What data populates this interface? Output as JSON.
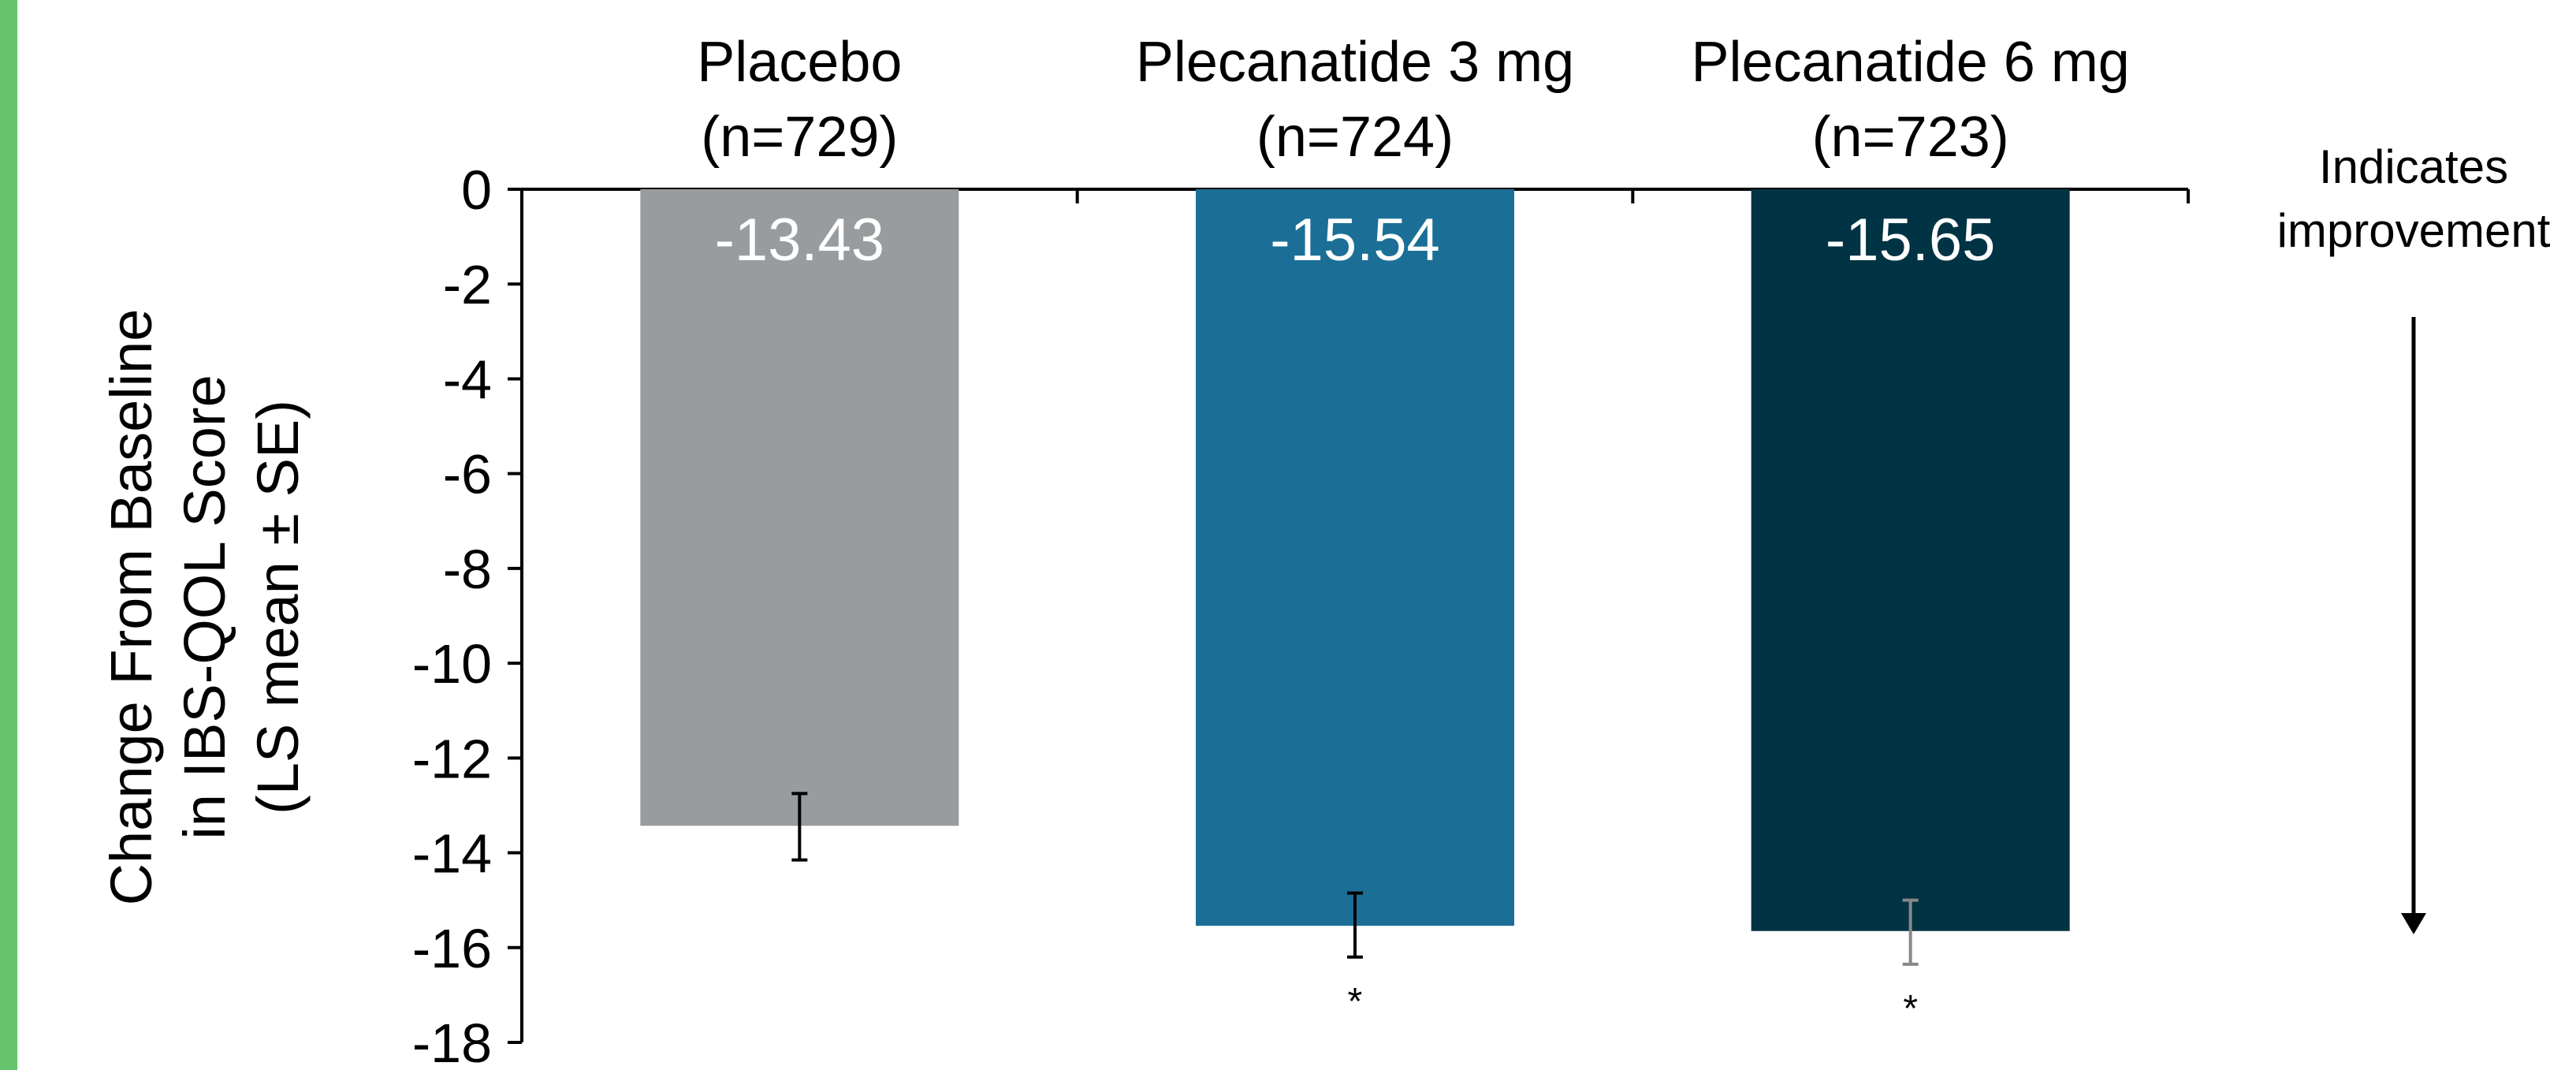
{
  "chart_data": {
    "type": "bar",
    "title": "",
    "xlabel": "",
    "ylabel_lines": [
      "Change From Baseline",
      "in IBS-QOL Score",
      "(LS mean ± SE)"
    ],
    "ylim": [
      -18,
      0
    ],
    "yticks": [
      0,
      -2,
      -4,
      -6,
      -8,
      -10,
      -12,
      -14,
      -16,
      -18
    ],
    "ytick_labels": [
      "0",
      "-2",
      "-4",
      "-6",
      "-8",
      "-10",
      "-12",
      "-14",
      "-16",
      "-18"
    ],
    "grid": false,
    "categories": [
      {
        "name": "Placebo",
        "n_label": "(n=729)"
      },
      {
        "name": "Plecanatide 3 mg",
        "n_label": "(n=724)"
      },
      {
        "name": "Plecanatide 6 mg",
        "n_label": "(n=723)"
      }
    ],
    "values": [
      -13.43,
      -15.54,
      -15.65
    ],
    "value_labels": [
      "-13.43",
      "-15.54",
      "-15.65"
    ],
    "error_bars": [
      [
        -14.15,
        -12.75
      ],
      [
        -16.2,
        -14.85
      ],
      [
        -16.35,
        -15.0
      ]
    ],
    "significance_markers": [
      "",
      "*",
      "*"
    ],
    "annotation": {
      "lines": [
        "Indicates",
        "improvement"
      ],
      "arrow_direction": "down"
    },
    "colors": {
      "bars": [
        "#989c9e",
        "#1b6f96",
        "#003344"
      ],
      "value_label": "#ffffff",
      "axis": "#000000",
      "error_bar": [
        "#000000",
        "#000000",
        "#888888"
      ],
      "left_accent": "#66c56c"
    }
  }
}
